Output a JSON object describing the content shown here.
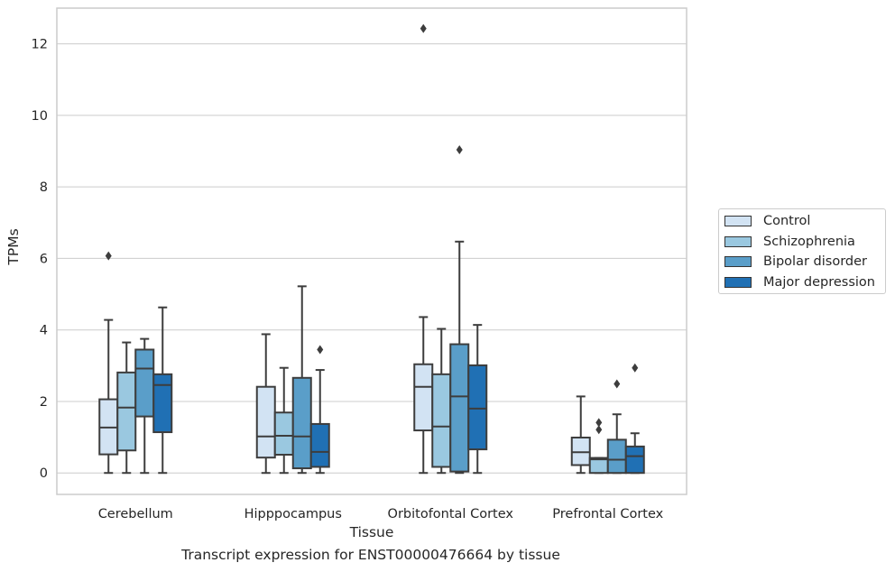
{
  "chart_data": {
    "type": "box",
    "categories": [
      "Cerebellum",
      "Hipppocampus",
      "Orbitofontal Cortex",
      "Prefrontal Cortex"
    ],
    "xlabel": "Tissue",
    "ylabel": "TPMs",
    "ylim": [
      -0.6,
      13
    ],
    "yticks": [
      0,
      2,
      4,
      6,
      8,
      10,
      12
    ],
    "grid": true,
    "legend_position": "right-outside",
    "series": [
      {
        "name": "Control",
        "color": "#d2e3f3",
        "boxes": [
          {
            "whislo": 0.0,
            "q1": 0.52,
            "med": 1.27,
            "q3": 2.06,
            "whishi": 4.28,
            "fliers": [
              6.07
            ]
          },
          {
            "whislo": 0.0,
            "q1": 0.43,
            "med": 1.02,
            "q3": 2.41,
            "whishi": 3.88,
            "fliers": []
          },
          {
            "whislo": 0.0,
            "q1": 1.19,
            "med": 2.41,
            "q3": 3.04,
            "whishi": 4.36,
            "fliers": [
              12.43
            ]
          },
          {
            "whislo": 0.0,
            "q1": 0.22,
            "med": 0.58,
            "q3": 0.99,
            "whishi": 2.14,
            "fliers": []
          }
        ]
      },
      {
        "name": "Schizophrenia",
        "color": "#9ac8e0",
        "boxes": [
          {
            "whislo": 0.0,
            "q1": 0.63,
            "med": 1.83,
            "q3": 2.81,
            "whishi": 3.65,
            "fliers": []
          },
          {
            "whislo": 0.0,
            "q1": 0.51,
            "med": 1.04,
            "q3": 1.69,
            "whishi": 2.94,
            "fliers": []
          },
          {
            "whislo": 0.0,
            "q1": 0.17,
            "med": 1.3,
            "q3": 2.76,
            "whishi": 4.03,
            "fliers": []
          },
          {
            "whislo": 0.0,
            "q1": 0.0,
            "med": 0.38,
            "q3": 0.42,
            "whishi": 0.42,
            "fliers": [
              1.21,
              1.41
            ]
          }
        ]
      },
      {
        "name": "Bipolar disorder",
        "color": "#5a9ec9",
        "boxes": [
          {
            "whislo": 0.0,
            "q1": 1.58,
            "med": 2.92,
            "q3": 3.45,
            "whishi": 3.75,
            "fliers": []
          },
          {
            "whislo": 0.0,
            "q1": 0.13,
            "med": 1.02,
            "q3": 2.66,
            "whishi": 5.22,
            "fliers": []
          },
          {
            "whislo": 0.0,
            "q1": 0.04,
            "med": 2.14,
            "q3": 3.6,
            "whishi": 6.47,
            "fliers": [
              9.04
            ]
          },
          {
            "whislo": 0.0,
            "q1": 0.0,
            "med": 0.37,
            "q3": 0.93,
            "whishi": 1.64,
            "fliers": [
              2.49
            ]
          }
        ]
      },
      {
        "name": "Major depression",
        "color": "#2070b4",
        "boxes": [
          {
            "whislo": 0.0,
            "q1": 1.14,
            "med": 2.46,
            "q3": 2.76,
            "whishi": 4.63,
            "fliers": []
          },
          {
            "whislo": 0.0,
            "q1": 0.17,
            "med": 0.59,
            "q3": 1.37,
            "whishi": 2.88,
            "fliers": [
              3.45
            ]
          },
          {
            "whislo": 0.0,
            "q1": 0.66,
            "med": 1.8,
            "q3": 3.01,
            "whishi": 4.14,
            "fliers": []
          },
          {
            "whislo": 0.0,
            "q1": 0.0,
            "med": 0.47,
            "q3": 0.74,
            "whishi": 1.11,
            "fliers": [
              2.94
            ]
          }
        ]
      }
    ]
  },
  "caption": "Transcript expression for ENST00000476664 by tissue"
}
